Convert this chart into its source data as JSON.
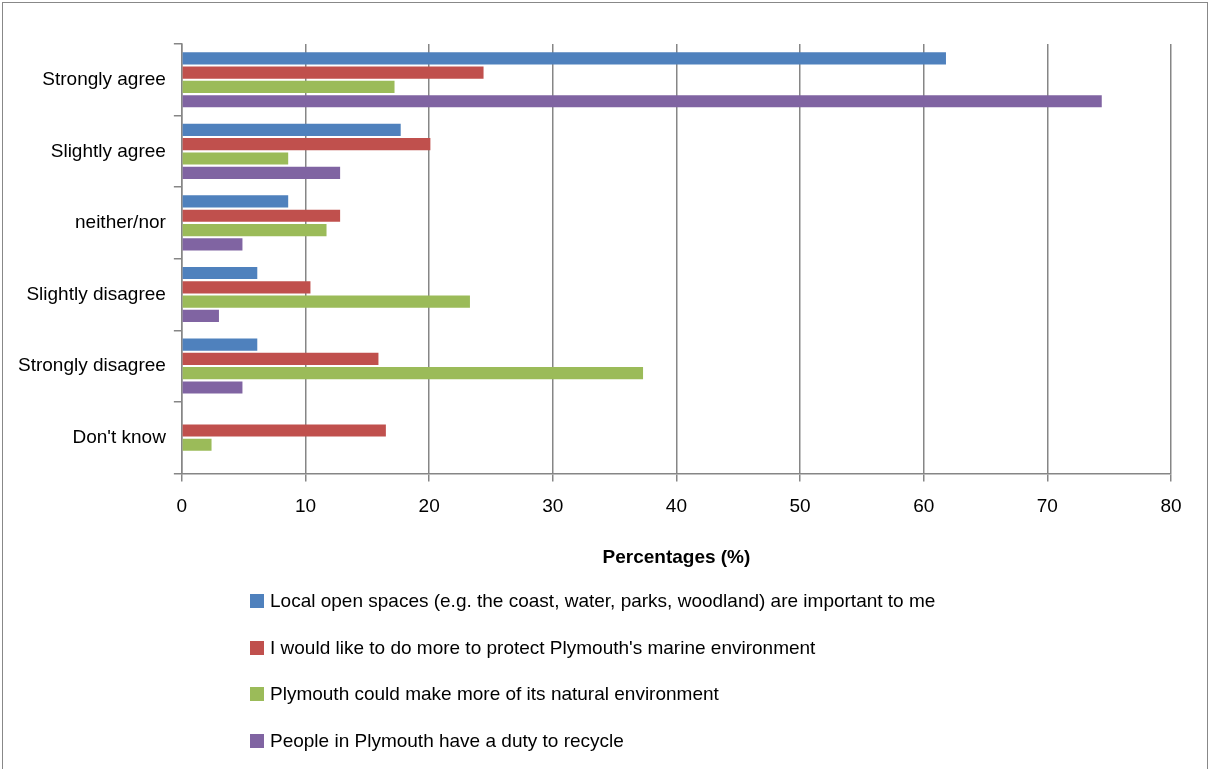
{
  "chart_data": {
    "type": "bar",
    "orientation": "horizontal",
    "xlabel": "Percentages (%)",
    "categories": [
      "Strongly agree",
      "Slightly agree",
      "neither/nor",
      "Slightly disagree",
      "Strongly disagree",
      "Don't know"
    ],
    "series": [
      {
        "name": "Local open spaces (e.g. the coast, water, parks, woodland) are important to me",
        "color": "#4f81bd",
        "values": [
          61.8,
          17.7,
          8.6,
          6.1,
          6.1,
          null
        ]
      },
      {
        "name": "I would like to do more to protect Plymouth's marine environment",
        "color": "#c0504d",
        "values": [
          24.4,
          20.1,
          12.8,
          10.4,
          15.9,
          16.5
        ]
      },
      {
        "name": "Plymouth could make more of its natural environment",
        "color": "#9bbb59",
        "values": [
          17.2,
          8.6,
          11.7,
          23.3,
          37.3,
          2.4
        ]
      },
      {
        "name": "People in Plymouth have a duty to recycle",
        "color": "#8064a2",
        "values": [
          74.4,
          12.8,
          4.9,
          3.0,
          4.9,
          null
        ]
      }
    ],
    "xlim": [
      0,
      80
    ],
    "xticks": [
      0,
      10,
      20,
      30,
      40,
      50,
      60,
      70,
      80
    ],
    "grid": "x",
    "legend": "bottom"
  }
}
